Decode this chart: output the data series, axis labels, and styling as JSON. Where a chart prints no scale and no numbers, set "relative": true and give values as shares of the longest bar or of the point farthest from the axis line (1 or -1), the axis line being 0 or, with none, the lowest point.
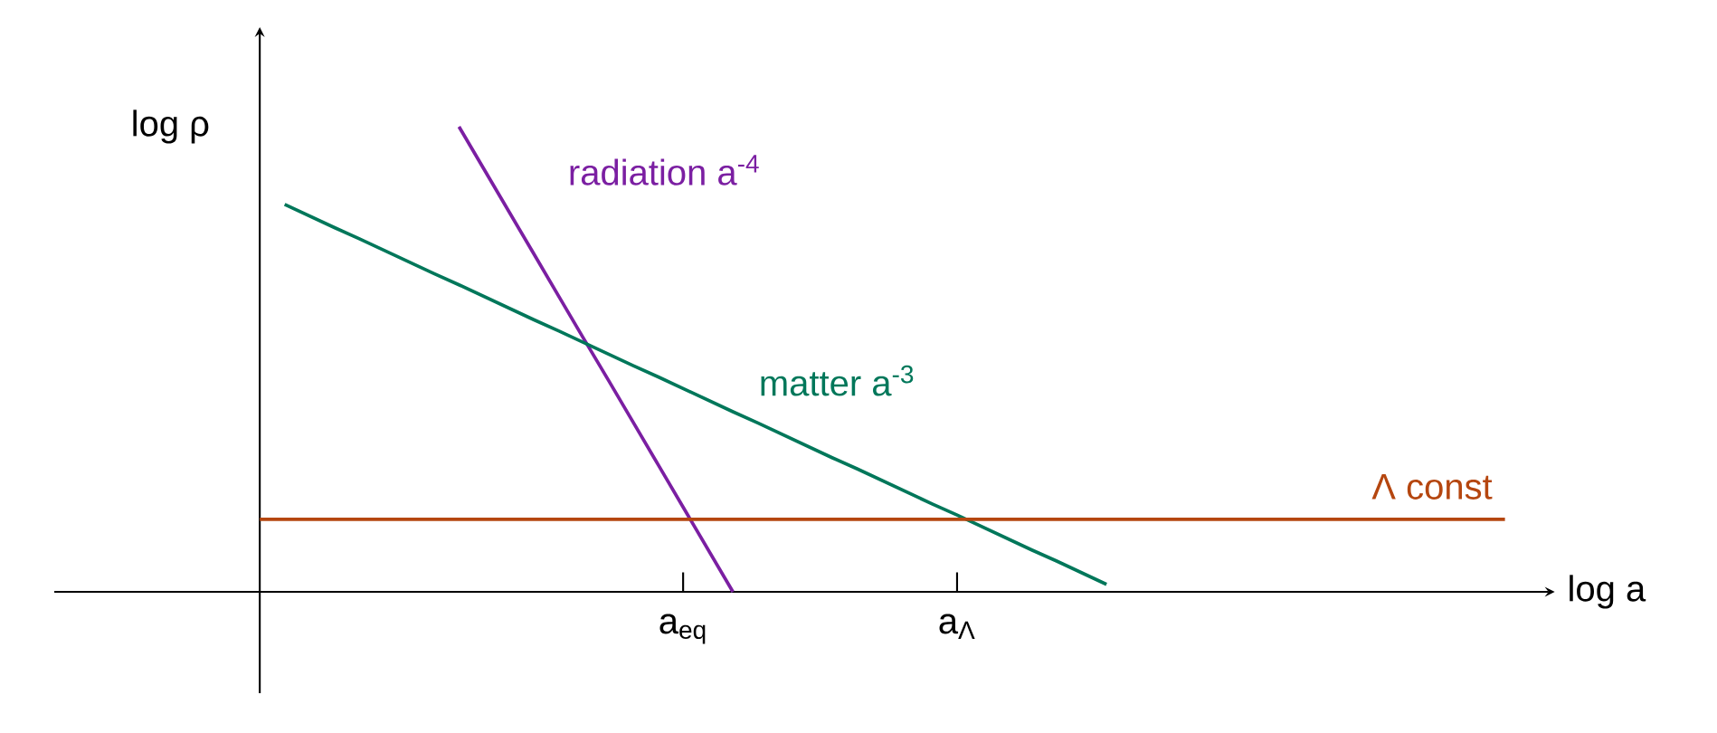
{
  "chart_data": {
    "type": "line",
    "relative": true,
    "xlabel": "log a",
    "ylabel": "log ρ",
    "categories": [
      null,
      null,
      null,
      null,
      null,
      null,
      null,
      null,
      null,
      null,
      null,
      null,
      null,
      null,
      null,
      null,
      null,
      "a$_{eq}$",
      null,
      null,
      null,
      null,
      null,
      null,
      null,
      null,
      null,
      null,
      "a$_{Λ}$",
      null,
      null,
      null,
      null,
      null,
      null,
      null,
      null,
      null,
      null,
      null,
      null,
      null,
      null,
      null,
      null,
      null,
      null,
      null,
      null,
      null,
      null
    ],
    "series": [
      {
        "name": "radiation a$^{-4}$",
        "color": "#7b1fa2",
        "values": [
          null,
          null,
          null,
          null,
          null,
          null,
          null,
          null,
          1.0,
          0.909,
          0.818,
          0.727,
          0.636,
          0.545,
          0.455,
          0.364,
          0.273,
          0.182,
          0.091,
          0.0,
          null,
          null,
          null,
          null,
          null,
          null,
          null,
          null,
          null,
          null,
          null,
          null,
          null,
          null,
          null,
          null,
          null,
          null,
          null,
          null,
          null,
          null,
          null,
          null,
          null,
          null,
          null,
          null,
          null,
          null,
          null
        ]
      },
      {
        "name": "matter a$^{-3}$",
        "color": "#00775a",
        "values": [
          null,
          0.833,
          0.808,
          0.783,
          0.759,
          0.734,
          0.709,
          0.684,
          0.66,
          0.635,
          0.61,
          0.585,
          0.561,
          0.536,
          0.511,
          0.486,
          0.462,
          0.437,
          0.412,
          0.387,
          0.363,
          0.338,
          0.313,
          0.288,
          0.264,
          0.239,
          0.214,
          0.189,
          0.165,
          0.14,
          0.115,
          0.09,
          0.066,
          0.041,
          0.016,
          null,
          null,
          null,
          null,
          null,
          null,
          null,
          null,
          null,
          null,
          null,
          null,
          null,
          null,
          null,
          null
        ]
      },
      {
        "name": "Λ const",
        "color": "#b5460f",
        "values": [
          0.156,
          0.156,
          0.156,
          0.156,
          0.156,
          0.156,
          0.156,
          0.156,
          0.156,
          0.156,
          0.156,
          0.156,
          0.156,
          0.156,
          0.156,
          0.156,
          0.156,
          0.156,
          0.156,
          0.156,
          0.156,
          0.156,
          0.156,
          0.156,
          0.156,
          0.156,
          0.156,
          0.156,
          0.156,
          0.156,
          0.156,
          0.156,
          0.156,
          0.156,
          0.156,
          0.156,
          0.156,
          0.156,
          0.156,
          0.156,
          0.156,
          0.156,
          0.156,
          0.156,
          0.156,
          0.156,
          0.156,
          0.156,
          0.156,
          0.156,
          0.156
        ]
      }
    ]
  }
}
